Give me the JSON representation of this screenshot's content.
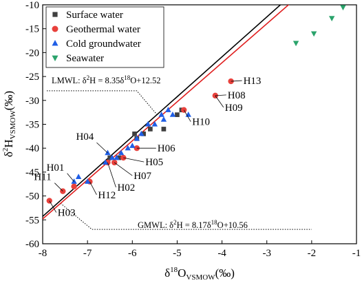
{
  "chart_data": {
    "type": "scatter",
    "title": "",
    "xlabel": "δ18OVSMOW(‰)",
    "ylabel": "δ2HVSMOW(‰)",
    "xlabel_parts": {
      "pre": "δ",
      "sup": "18",
      "mid": "O",
      "sub": "VSMOW",
      "post": "(‰)"
    },
    "ylabel_parts": {
      "pre": "δ",
      "sup": "2",
      "mid": "H",
      "sub": "VSMOW",
      "post": "(‰)"
    },
    "xlim": [
      -8,
      -1
    ],
    "ylim": [
      -60,
      -10
    ],
    "xticks": [
      -8,
      -7,
      -6,
      -5,
      -4,
      -3,
      -2,
      -1
    ],
    "yticks": [
      -60,
      -55,
      -50,
      -45,
      -40,
      -35,
      -30,
      -25,
      -20,
      -15,
      -10
    ],
    "grid": false,
    "legend_position": "top-left",
    "series": [
      {
        "name": "Surface water",
        "marker": "square",
        "color": "#404040",
        "points": [
          {
            "x": -5.95,
            "y": -37.0
          },
          {
            "x": -5.75,
            "y": -37.0
          },
          {
            "x": -5.6,
            "y": -36.0
          },
          {
            "x": -5.3,
            "y": -36.0
          },
          {
            "x": -5.0,
            "y": -33.0
          },
          {
            "x": -4.9,
            "y": -32.0
          },
          {
            "x": -6.5,
            "y": -42.0
          },
          {
            "x": -6.3,
            "y": -42.0
          },
          {
            "x": -5.9,
            "y": -38.0
          }
        ]
      },
      {
        "name": "Geothermal water",
        "marker": "circle",
        "color": "#e8413c",
        "points": [
          {
            "x": -7.85,
            "y": -51.0
          },
          {
            "x": -7.55,
            "y": -49.0
          },
          {
            "x": -7.3,
            "y": -48.0
          },
          {
            "x": -6.95,
            "y": -47.0
          },
          {
            "x": -6.55,
            "y": -43.0
          },
          {
            "x": -6.4,
            "y": -43.0
          },
          {
            "x": -6.2,
            "y": -42.0
          },
          {
            "x": -5.9,
            "y": -40.0
          },
          {
            "x": -4.15,
            "y": -29.0
          },
          {
            "x": -3.8,
            "y": -26.0
          },
          {
            "x": -4.85,
            "y": -32.0
          }
        ]
      },
      {
        "name": "Cold groundwater",
        "marker": "triangle-up",
        "color": "#1f5ee6",
        "points": [
          {
            "x": -7.3,
            "y": -47.0
          },
          {
            "x": -7.2,
            "y": -46.0
          },
          {
            "x": -7.0,
            "y": -47.0
          },
          {
            "x": -6.55,
            "y": -41.0
          },
          {
            "x": -6.45,
            "y": -42.0
          },
          {
            "x": -6.35,
            "y": -42.0
          },
          {
            "x": -6.25,
            "y": -41.0
          },
          {
            "x": -6.1,
            "y": -40.0
          },
          {
            "x": -6.0,
            "y": -39.5
          },
          {
            "x": -5.9,
            "y": -38.0
          },
          {
            "x": -5.8,
            "y": -37.0
          },
          {
            "x": -5.65,
            "y": -35.0
          },
          {
            "x": -5.5,
            "y": -35.0
          },
          {
            "x": -5.35,
            "y": -33.0
          },
          {
            "x": -5.3,
            "y": -34.0
          },
          {
            "x": -5.2,
            "y": -32.0
          },
          {
            "x": -5.1,
            "y": -33.0
          },
          {
            "x": -4.75,
            "y": -33.0
          },
          {
            "x": -6.6,
            "y": -43.0
          }
        ]
      },
      {
        "name": "Seawater",
        "marker": "triangle-down",
        "color": "#2aa36b",
        "points": [
          {
            "x": -2.35,
            "y": -18.0
          },
          {
            "x": -1.95,
            "y": -16.0
          },
          {
            "x": -1.55,
            "y": -12.8
          },
          {
            "x": -1.3,
            "y": -10.5
          }
        ]
      }
    ],
    "lines": [
      {
        "name": "LMWL",
        "slope": 8.35,
        "intercept": 12.52,
        "color": "#000000"
      },
      {
        "name": "GMWL",
        "slope": 8.17,
        "intercept": 10.56,
        "color": "#e01e1e"
      }
    ],
    "equations": {
      "lmwl": {
        "pre": "LMWL: δ",
        "s1": "2",
        "mid": "H = 8.35δ",
        "s2": "18",
        "post": "O+12.52"
      },
      "gmwl": {
        "pre": "GMWL: δ",
        "s1": "2",
        "mid": "H = 8.17δ",
        "s2": "18",
        "post": "O+10.56"
      }
    },
    "point_labels": [
      {
        "label": "H13",
        "x": -3.8,
        "y": -26.0
      },
      {
        "label": "H08",
        "x": -4.15,
        "y": -29.0
      },
      {
        "label": "H09",
        "x": -4.15,
        "y": -29.0
      },
      {
        "label": "H10",
        "x": -4.85,
        "y": -32.0
      },
      {
        "label": "H06",
        "x": -5.9,
        "y": -40.0
      },
      {
        "label": "H04",
        "x": -6.55,
        "y": -41.0
      },
      {
        "label": "H05",
        "x": -6.2,
        "y": -42.0
      },
      {
        "label": "H07",
        "x": -6.4,
        "y": -43.0
      },
      {
        "label": "H02",
        "x": -6.55,
        "y": -43.0
      },
      {
        "label": "H01",
        "x": -7.3,
        "y": -47.0
      },
      {
        "label": "H12",
        "x": -6.95,
        "y": -47.0
      },
      {
        "label": "H11",
        "x": -7.55,
        "y": -49.0
      },
      {
        "label": "H03",
        "x": -7.85,
        "y": -51.0
      }
    ]
  }
}
